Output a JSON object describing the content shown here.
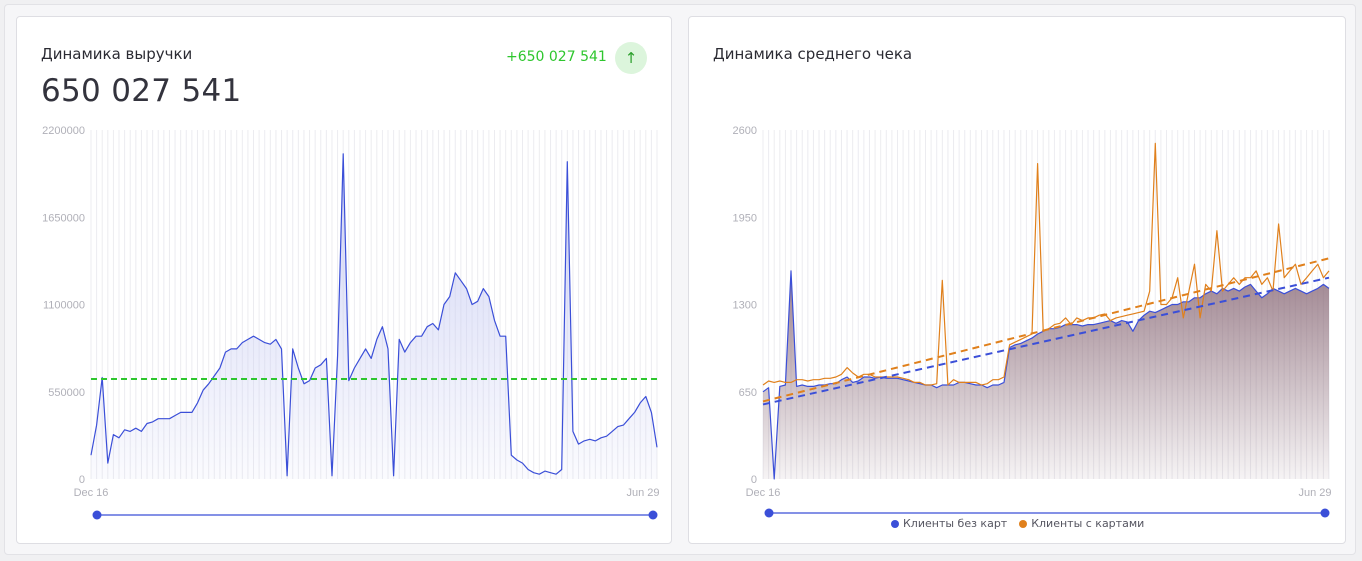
{
  "revenue_card": {
    "title": "Динамика выручки",
    "total": "650 027 541",
    "delta": "+650 027 541",
    "delta_icon": "arrow-up-icon"
  },
  "avg_check_card": {
    "title": "Динамика среднего чека"
  },
  "colors": {
    "revenue_line": "#3b4fd8",
    "revenue_fill": "#c9cdf3",
    "average_line": "#2ec62e",
    "no_cards_line": "#3b4fd8",
    "cards_line": "#e0801c",
    "avg_fill": "#8e6f7c"
  },
  "chart_data": [
    {
      "type": "line",
      "title": "Динамика выручки",
      "x_start_label": "Dec 16",
      "x_end_label": "Jun 29",
      "yticks": [
        "2200000",
        "1650000",
        "1100000",
        "550000",
        "0"
      ],
      "ylim": [
        0,
        2200000
      ],
      "grid": "vertical",
      "average_line": 630000,
      "series": [
        {
          "values": [
            150000,
            340000,
            640000,
            100000,
            280000,
            260000,
            310000,
            300000,
            320000,
            300000,
            350000,
            360000,
            380000,
            380000,
            380000,
            400000,
            420000,
            420000,
            420000,
            480000,
            560000,
            600000,
            650000,
            700000,
            800000,
            820000,
            820000,
            860000,
            880000,
            900000,
            880000,
            860000,
            850000,
            880000,
            820000,
            20000,
            820000,
            700000,
            600000,
            620000,
            700000,
            720000,
            760000,
            20000,
            780000,
            2050000,
            620000,
            700000,
            760000,
            820000,
            760000,
            880000,
            960000,
            820000,
            20000,
            880000,
            800000,
            860000,
            900000,
            900000,
            960000,
            980000,
            940000,
            1100000,
            1150000,
            1300000,
            1250000,
            1200000,
            1100000,
            1120000,
            1200000,
            1150000,
            1000000,
            900000,
            900000,
            150000,
            120000,
            100000,
            60000,
            40000,
            30000,
            50000,
            40000,
            30000,
            60000,
            2000000,
            300000,
            220000,
            240000,
            250000,
            240000,
            260000,
            270000,
            300000,
            330000,
            340000,
            380000,
            420000,
            480000,
            520000,
            420000,
            200000
          ]
        }
      ]
    },
    {
      "type": "line",
      "title": "Динамика среднего чека",
      "x_start_label": "Dec 16",
      "x_end_label": "Jun 29",
      "yticks": [
        "2600",
        "1950",
        "1300",
        "650",
        "0"
      ],
      "ylim": [
        0,
        2600
      ],
      "grid": "vertical",
      "legend_position": "bottom",
      "series": [
        {
          "name": "Клиенты без карт",
          "values": [
            650,
            680,
            0,
            690,
            700,
            1550,
            690,
            700,
            690,
            690,
            700,
            700,
            710,
            710,
            740,
            760,
            720,
            730,
            760,
            760,
            750,
            760,
            750,
            750,
            750,
            740,
            730,
            720,
            710,
            700,
            700,
            680,
            700,
            700,
            700,
            720,
            720,
            710,
            700,
            700,
            680,
            700,
            700,
            720,
            980,
            1000,
            1010,
            1030,
            1050,
            1080,
            1100,
            1120,
            1120,
            1130,
            1150,
            1150,
            1150,
            1140,
            1150,
            1150,
            1160,
            1170,
            1180,
            1160,
            1180,
            1170,
            1100,
            1180,
            1220,
            1250,
            1240,
            1260,
            1280,
            1300,
            1300,
            1320,
            1320,
            1350,
            1350,
            1380,
            1400,
            1380,
            1420,
            1400,
            1420,
            1400,
            1430,
            1450,
            1400,
            1350,
            1380,
            1420,
            1400,
            1380,
            1400,
            1420,
            1400,
            1380,
            1400,
            1420,
            1450,
            1420
          ]
        },
        {
          "name": "Клиенты с картами",
          "values": [
            700,
            730,
            720,
            730,
            720,
            720,
            740,
            740,
            730,
            740,
            740,
            750,
            750,
            760,
            780,
            830,
            790,
            760,
            780,
            780,
            760,
            760,
            760,
            760,
            760,
            750,
            740,
            720,
            720,
            700,
            700,
            710,
            1480,
            700,
            740,
            720,
            720,
            720,
            720,
            700,
            710,
            740,
            740,
            760,
            1000,
            1020,
            1040,
            1060,
            1080,
            2350,
            1100,
            1120,
            1150,
            1160,
            1200,
            1150,
            1200,
            1180,
            1200,
            1200,
            1220,
            1230,
            1180,
            1200,
            1210,
            1220,
            1230,
            1240,
            1250,
            1400,
            2500,
            1300,
            1300,
            1350,
            1500,
            1200,
            1400,
            1600,
            1200,
            1450,
            1400,
            1850,
            1400,
            1450,
            1500,
            1450,
            1500,
            1500,
            1550,
            1450,
            1500,
            1400,
            1900,
            1500,
            1550,
            1600,
            1450,
            1500,
            1550,
            1600,
            1500,
            1550
          ]
        }
      ]
    }
  ]
}
